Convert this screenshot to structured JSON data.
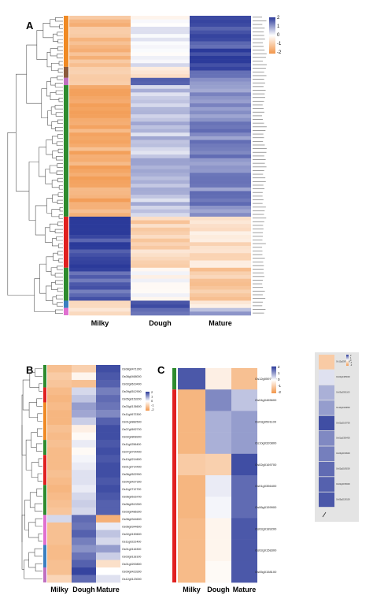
{
  "panels": {
    "A": {
      "label": "A",
      "columns": [
        "Milky",
        "Dough",
        "Mature"
      ]
    },
    "B": {
      "label": "B",
      "columns": [
        "Milky",
        "Dough",
        "Mature"
      ]
    },
    "C": {
      "label": "C",
      "columns": [
        "Milky",
        "Dough",
        "Mature"
      ]
    }
  },
  "legend": {
    "ticks": [
      "2",
      "1",
      "0",
      "-1",
      "-2"
    ]
  },
  "colors": {
    "high": "#2b3a9a",
    "mid": "#ffffff",
    "low": "#f2964a"
  },
  "chart_data": [
    {
      "type": "heatmap",
      "title": "",
      "panel": "A",
      "columns": [
        "Milky",
        "Dough",
        "Mature"
      ],
      "scale": [
        -2,
        2
      ],
      "row_groups": [
        {
          "color": "#f08a24",
          "rows": 14,
          "values": [
            -1.3,
            0.1,
            1.8
          ]
        },
        {
          "color": "#8b5a3c",
          "rows": 3,
          "values": [
            -0.7,
            -0.5,
            1.7
          ]
        },
        {
          "color": "#c070c0",
          "rows": 2,
          "values": [
            -1.2,
            1.6,
            1.2
          ]
        },
        {
          "color": "#2e8b2e",
          "rows": 36,
          "values": [
            -1.5,
            0.6,
            1.2
          ]
        },
        {
          "color": "#e02020",
          "rows": 14,
          "values": [
            1.9,
            -0.8,
            -0.6
          ]
        },
        {
          "color": "#2e8b2e",
          "rows": 9,
          "values": [
            1.6,
            -0.1,
            -1.1
          ]
        },
        {
          "color": "#3a7fc0",
          "rows": 2,
          "values": [
            -0.8,
            1.9,
            -0.4
          ]
        },
        {
          "color": "#e070d0",
          "rows": 2,
          "values": [
            -0.6,
            1.5,
            0.9
          ]
        }
      ]
    },
    {
      "type": "heatmap",
      "title": "",
      "panel": "B",
      "columns": [
        "Milky",
        "Dough",
        "Mature"
      ],
      "rows": [
        "Os08g0471300",
        "Os08g0468000",
        "Os02g0619400",
        "Os09g0512900",
        "Os05g0153200",
        "Os03g0136600",
        "Os11g0672300",
        "Os01g0882500",
        "Os07g0692700",
        "Os02g0808300",
        "Os11g0256400",
        "Os07g0704400",
        "Os10g0214600",
        "Os01g0714400",
        "Os06g0522900",
        "Os04g0427300",
        "Os11g0712700",
        "Os06g0516700",
        "Os06g0513300",
        "Os03g0486300",
        "Os08g0344600",
        "Os06g0344600",
        "Os02g0150600",
        "Os11g0222400",
        "Os01g0116300",
        "Os03g0118100",
        "Os01g0200800",
        "Os09g0423300",
        "Os12g0123000"
      ],
      "values": [
        [
          -1.2,
          -0.9,
          1.8
        ],
        [
          -1.0,
          -0.2,
          1.7
        ],
        [
          -1.1,
          -1.2,
          1.6
        ],
        [
          -1.3,
          0.4,
          1.3
        ],
        [
          -1.4,
          0.6,
          1.5
        ],
        [
          -1.3,
          1.0,
          1.4
        ],
        [
          -1.4,
          0.9,
          1.2
        ],
        [
          -1.4,
          0.5,
          1.6
        ],
        [
          -1.2,
          -0.3,
          1.8
        ],
        [
          -1.3,
          -0.1,
          1.8
        ],
        [
          -1.2,
          0.2,
          1.7
        ],
        [
          -1.3,
          -0.1,
          1.8
        ],
        [
          -1.3,
          0.1,
          1.7
        ],
        [
          -1.3,
          0.2,
          1.8
        ],
        [
          -1.2,
          0.3,
          1.8
        ],
        [
          -1.3,
          0.3,
          1.7
        ],
        [
          -1.4,
          0.2,
          1.8
        ],
        [
          -1.3,
          0.4,
          1.7
        ],
        [
          -1.2,
          0.5,
          1.6
        ],
        [
          -1.1,
          0.4,
          1.6
        ],
        [
          0.4,
          1.5,
          -1.5
        ],
        [
          -1.2,
          1.4,
          0.2
        ],
        [
          -1.2,
          1.6,
          0.6
        ],
        [
          -1.2,
          1.3,
          0.4
        ],
        [
          -1.3,
          1.1,
          1.0
        ],
        [
          -1.3,
          1.4,
          0.5
        ],
        [
          -1.2,
          1.6,
          -0.6
        ],
        [
          -1.2,
          1.9,
          0.0
        ],
        [
          -0.8,
          1.5,
          0.3
        ]
      ]
    },
    {
      "type": "heatmap",
      "title": "",
      "panel": "C",
      "columns": [
        "Milky",
        "Dough",
        "Mature"
      ],
      "rows": [
        "Os12g0597600",
        "Os04g0465600",
        "Os03g0591100",
        "Os10g0320800",
        "Os02g0169700",
        "Os01g0356400",
        "Os06g0159900",
        "Os02g0189200",
        "Os02g0158300",
        "Os05g0158100"
      ],
      "values": [
        [
          1.7,
          -0.3,
          -1.2
        ],
        [
          -1.4,
          1.2,
          0.6
        ],
        [
          -1.4,
          0.8,
          1.0
        ],
        [
          -1.4,
          0.8,
          1.0
        ],
        [
          -1.0,
          -0.9,
          1.8
        ],
        [
          -1.4,
          0.2,
          1.5
        ],
        [
          -1.4,
          0.1,
          1.5
        ],
        [
          -1.3,
          -0.2,
          1.7
        ],
        [
          -1.3,
          -0.2,
          1.7
        ],
        [
          -1.3,
          -0.1,
          1.7
        ]
      ]
    },
    {
      "type": "heatmap",
      "title": "",
      "panel": "thumbnail",
      "columns": [
        "",
        ""
      ],
      "rows": [
        "Os12g0597600",
        "Os04g0465600",
        "Os03g0591100",
        "Os10g0320800",
        "Os02g0169700",
        "Os01g0356400",
        "Os06g0159900",
        "Os02g0189200",
        "Os02g0158300",
        "Os05g0158100"
      ],
      "values": [
        [
          -1.0
        ],
        [
          0.3
        ],
        [
          0.8
        ],
        [
          1.0
        ],
        [
          1.8
        ],
        [
          1.2
        ],
        [
          1.3
        ],
        [
          1.5
        ],
        [
          1.6
        ],
        [
          1.7
        ]
      ]
    }
  ]
}
